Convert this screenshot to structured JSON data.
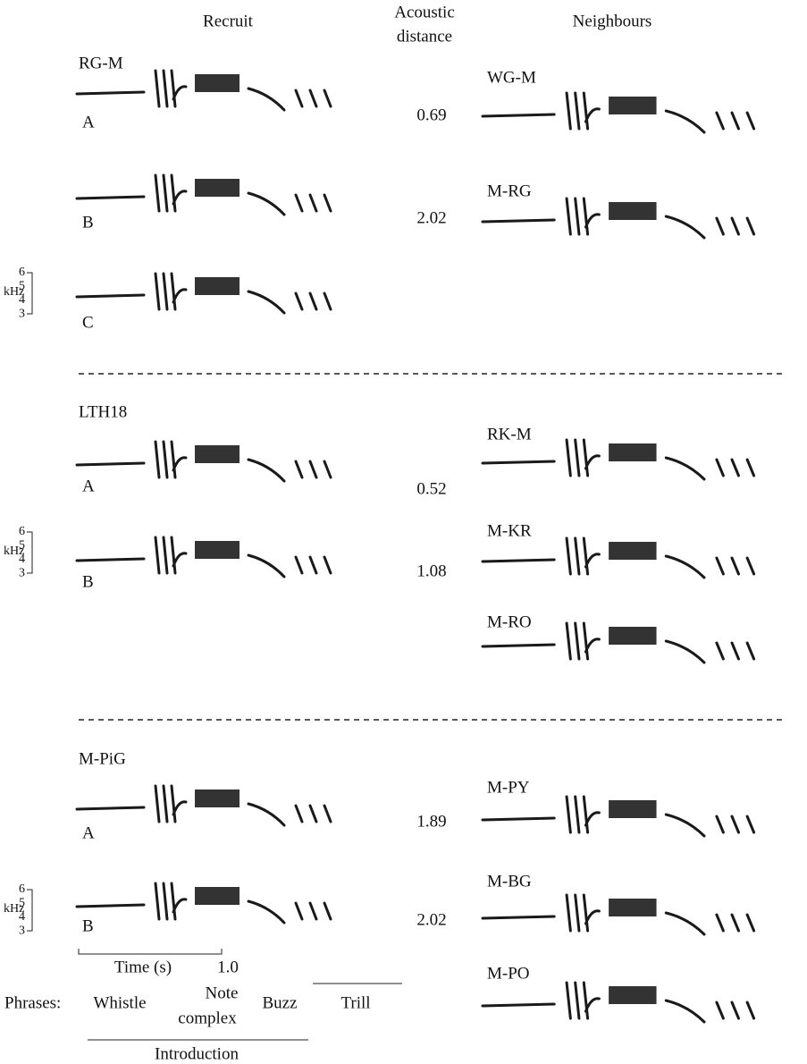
{
  "header": {
    "recruit": "Recruit",
    "acoustic_distance": [
      "Acoustic",
      "distance"
    ],
    "neighbours": "Neighbours"
  },
  "groups": [
    {
      "recruit": "RG-M",
      "songs": [
        "A",
        "B",
        "C"
      ],
      "distances": [
        "0.69",
        "2.02"
      ],
      "neighbours": [
        "WG-M",
        "M-RG"
      ]
    },
    {
      "recruit": "LTH18",
      "songs": [
        "A",
        "B"
      ],
      "distances": [
        "0.52",
        "1.08"
      ],
      "neighbours": [
        "RK-M",
        "M-KR",
        "M-RO"
      ]
    },
    {
      "recruit": "M-PiG",
      "songs": [
        "A",
        "B"
      ],
      "distances": [
        "1.89",
        "2.02"
      ],
      "neighbours": [
        "M-PY",
        "M-BG",
        "M-PO"
      ]
    }
  ],
  "freq_scale": {
    "unit": "kHz",
    "ticks": [
      "6",
      "5",
      "4",
      "3"
    ]
  },
  "time_scale": {
    "label": "Time (s)",
    "end": "1.0"
  },
  "phrases": {
    "label": "Phrases:",
    "names": [
      "Whistle",
      [
        "Note",
        "complex"
      ],
      "Buzz",
      "Trill"
    ],
    "group": "Introduction"
  }
}
